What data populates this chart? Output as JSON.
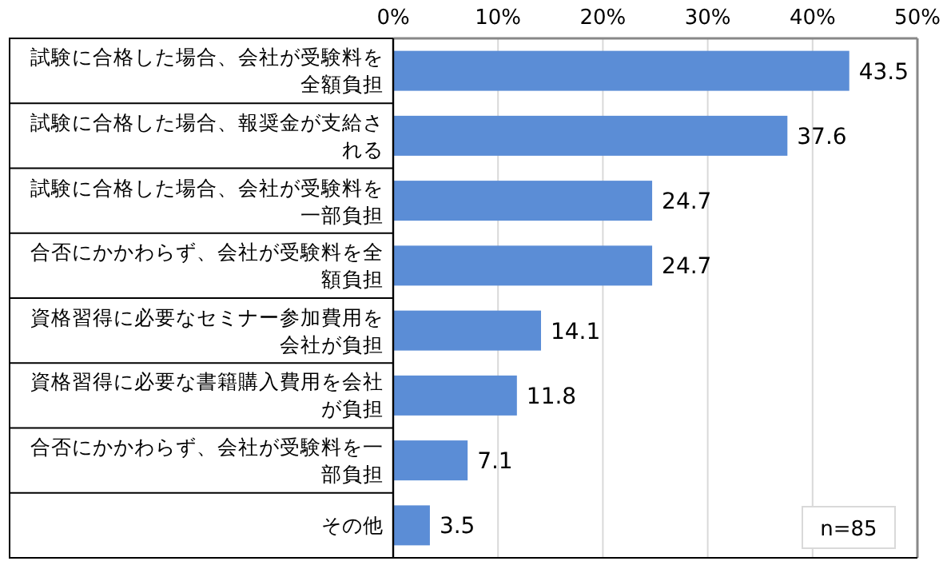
{
  "chart_data": {
    "type": "bar",
    "orientation": "horizontal",
    "categories": [
      "試験に合格した場合、会社が受験料を全額負担",
      "試験に合格した場合、報奨金が支給される",
      "試験に合格した場合、会社が受験料を一部負担",
      "合否にかかわらず、会社が受験料を全額負担",
      "資格習得に必要なセミナー参加費用を会社が負担",
      "資格習得に必要な書籍購入費用を会社が負担",
      "合否にかかわらず、会社が受験料を一部負担",
      "その他"
    ],
    "values": [
      43.5,
      37.6,
      24.7,
      24.7,
      14.1,
      11.8,
      7.1,
      3.5
    ],
    "color": "#5b8dd6",
    "xlim": [
      0,
      50
    ],
    "xticks": [
      {
        "value": 0,
        "label": "0%"
      },
      {
        "value": 10,
        "label": "10%"
      },
      {
        "value": 20,
        "label": "20%"
      },
      {
        "value": 30,
        "label": "30%"
      },
      {
        "value": 40,
        "label": "40%"
      },
      {
        "value": 50,
        "label": "50%"
      }
    ],
    "grid": "x",
    "data_labels": true,
    "annotations": [
      "n=85"
    ]
  }
}
